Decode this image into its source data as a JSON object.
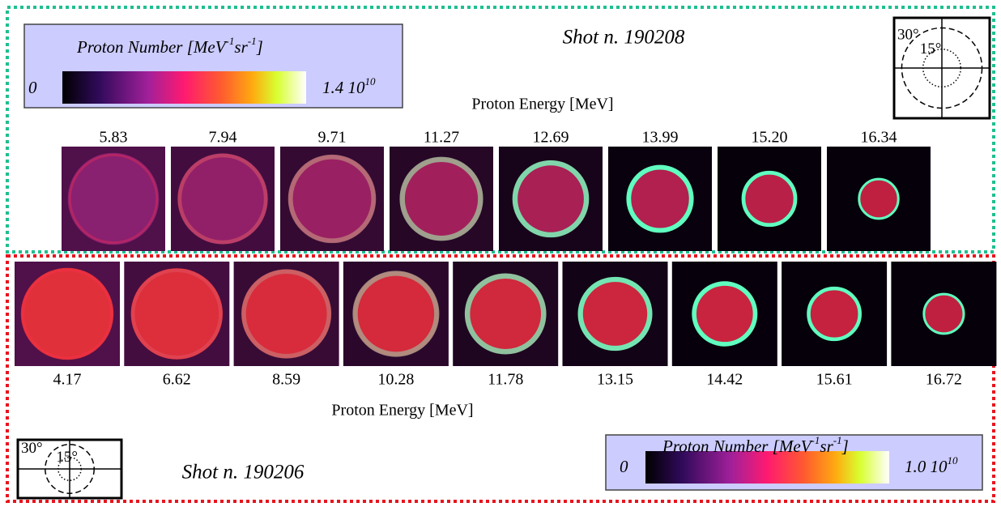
{
  "panels": [
    {
      "shot": "Shot n. 190208",
      "colorbar": {
        "label_parts": [
          "Proton Number [MeV",
          "-1",
          "sr",
          "-1",
          "]"
        ],
        "min": "0",
        "max_parts": [
          "1.4 10",
          "10"
        ]
      },
      "energy_label": "Proton Energy [MeV]",
      "energies": [
        "5.83",
        "7.94",
        "9.71",
        "11.27",
        "12.69",
        "13.99",
        "15.20",
        "16.34"
      ],
      "angles": [
        "30°",
        "15°"
      ]
    },
    {
      "shot": "Shot n. 190206",
      "colorbar": {
        "label_parts": [
          "Proton Number [MeV",
          "-1",
          "sr",
          "-1",
          "]"
        ],
        "min": "0",
        "max_parts": [
          "1.0 10",
          "10"
        ]
      },
      "energy_label": "Proton Energy [MeV]",
      "energies": [
        "4.17",
        "6.62",
        "8.59",
        "10.28",
        "11.78",
        "13.15",
        "14.42",
        "15.61",
        "16.72"
      ],
      "angles": [
        "30°",
        "15°"
      ]
    }
  ]
}
